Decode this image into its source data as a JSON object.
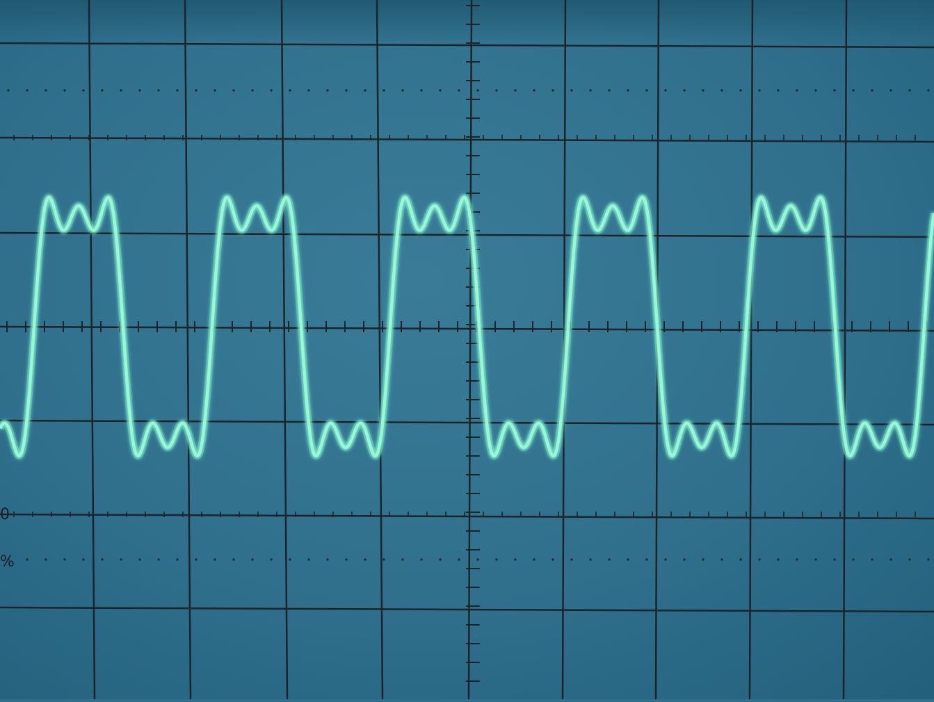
{
  "screen": {
    "background_color": "#2f6f8c",
    "grid_color": "#1c2428",
    "trace_color": "#9cf5d6",
    "trace_glow_color": "#5fe0c0"
  },
  "graticule": {
    "horizontal_divisions": 10,
    "vertical_divisions": 8,
    "minor_ticks_per_division": 5
  },
  "edge_labels": {
    "zero_marker": "0",
    "percent_marker": "%"
  },
  "waveform": {
    "description_type": "periodic-with-harmonics",
    "cycles_visible": 5,
    "fundamental_amplitude": 1.0,
    "harmonic_3_amplitude": 0.33,
    "harmonic_5_amplitude": 0.2
  }
}
